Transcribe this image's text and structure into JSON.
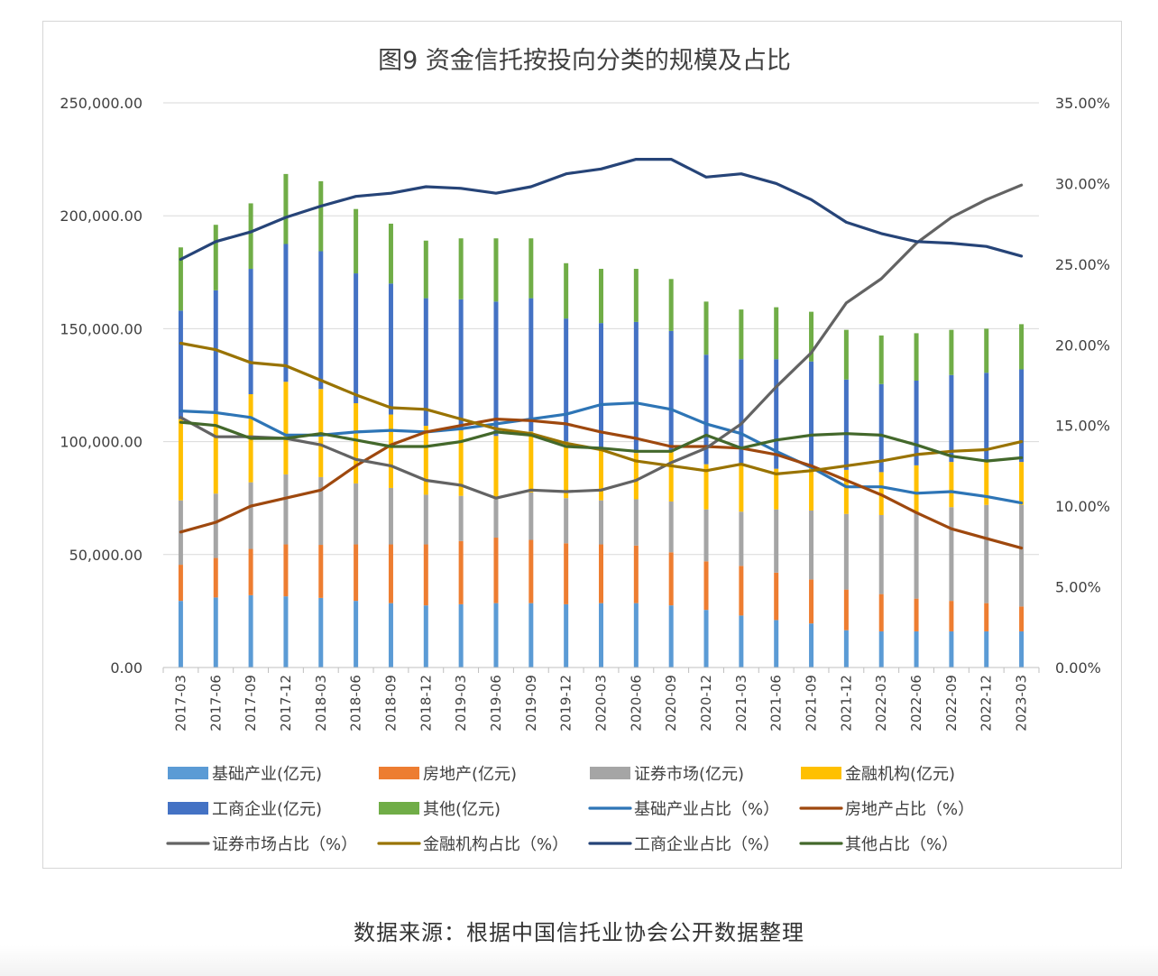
{
  "chart_data": {
    "type": "bar",
    "title": "图9  资金信托按投向分类的规模及占比",
    "categories": [
      "2017-03",
      "2017-06",
      "2017-09",
      "2017-12",
      "2018-03",
      "2018-06",
      "2018-09",
      "2018-12",
      "2019-03",
      "2019-06",
      "2019-09",
      "2019-12",
      "2020-03",
      "2020-06",
      "2020-09",
      "2020-12",
      "2021-03",
      "2021-06",
      "2021-09",
      "2021-12",
      "2022-03",
      "2022-06",
      "2022-09",
      "2022-12",
      "2023-03"
    ],
    "left_axis": {
      "min": 0,
      "max": 250000,
      "ticks": [
        "0.00",
        "50,000.00",
        "100,000.00",
        "150,000.00",
        "200,000.00",
        "250,000.00"
      ]
    },
    "right_axis": {
      "min": 0,
      "max": 35,
      "ticks": [
        "0.00%",
        "5.00%",
        "10.00%",
        "15.00%",
        "20.00%",
        "25.00%",
        "30.00%",
        "35.00%"
      ]
    },
    "grid": true,
    "legend_position": "bottom",
    "bar_series": [
      {
        "name": "基础产业(亿元)",
        "color": "#5b9bd5",
        "values": [
          29500,
          31000,
          32000,
          31500,
          30800,
          29500,
          28500,
          27500,
          28000,
          28500,
          28500,
          28000,
          28500,
          28500,
          27500,
          25500,
          23000,
          21000,
          19500,
          16500,
          16000,
          16000,
          16000,
          16000,
          16000
        ]
      },
      {
        "name": "房地产(亿元)",
        "color": "#ed7d31",
        "values": [
          16000,
          17500,
          20500,
          23000,
          23500,
          25000,
          26000,
          27000,
          28000,
          29000,
          28000,
          27000,
          26000,
          25500,
          23500,
          21500,
          22000,
          21000,
          19500,
          18000,
          16500,
          14500,
          13500,
          12500,
          11000
        ]
      },
      {
        "name": "证券市场(亿元)",
        "color": "#a5a5a5",
        "values": [
          28500,
          28500,
          29500,
          31000,
          30000,
          27000,
          25000,
          22000,
          20000,
          17000,
          21000,
          20000,
          19500,
          20500,
          22500,
          23000,
          24000,
          28000,
          30500,
          33500,
          35000,
          38000,
          41500,
          43500,
          45000
        ]
      },
      {
        "name": "金融机构(亿元)",
        "color": "#ffc000",
        "values": [
          36000,
          36500,
          39000,
          41000,
          39000,
          35500,
          32500,
          30500,
          29000,
          28000,
          27000,
          25000,
          23000,
          20500,
          22000,
          20000,
          21500,
          18000,
          19000,
          19500,
          19000,
          21000,
          20000,
          20000,
          19000
        ]
      },
      {
        "name": "工商企业(亿元)",
        "color": "#4472c4",
        "values": [
          48000,
          53500,
          55500,
          61000,
          61000,
          57500,
          58000,
          56500,
          58000,
          59500,
          59000,
          54500,
          55500,
          58000,
          53500,
          48500,
          46000,
          48500,
          47000,
          40000,
          39000,
          37500,
          38500,
          38500,
          41000
        ]
      },
      {
        "name": "其他(亿元)",
        "color": "#70ad47",
        "values": [
          28000,
          29000,
          29000,
          31000,
          31000,
          28500,
          26500,
          25500,
          27000,
          28000,
          26500,
          24500,
          24000,
          23500,
          23000,
          23500,
          22000,
          23000,
          22000,
          22000,
          21500,
          21000,
          20000,
          19500,
          20000
        ]
      }
    ],
    "line_series": [
      {
        "name": "基础产业占比（%）",
        "color": "#2e75b6",
        "values": [
          15.9,
          15.8,
          15.5,
          14.4,
          14.4,
          14.6,
          14.7,
          14.6,
          14.8,
          15.1,
          15.4,
          15.7,
          16.3,
          16.4,
          16.0,
          15.1,
          14.5,
          13.4,
          12.4,
          11.2,
          11.2,
          10.8,
          10.9,
          10.6,
          10.2
        ]
      },
      {
        "name": "房地产占比（%）",
        "color": "#9e480e",
        "values": [
          8.4,
          9.0,
          10.0,
          10.5,
          11.0,
          12.5,
          13.8,
          14.6,
          15.0,
          15.4,
          15.3,
          15.1,
          14.6,
          14.2,
          13.7,
          13.7,
          13.6,
          13.2,
          12.5,
          11.6,
          10.7,
          9.6,
          8.6,
          8.0,
          7.4
        ]
      },
      {
        "name": "证券市场占比（%）",
        "color": "#636363",
        "values": [
          15.5,
          14.3,
          14.3,
          14.2,
          13.8,
          12.9,
          12.5,
          11.6,
          11.3,
          10.5,
          11.0,
          10.9,
          11.0,
          11.6,
          12.7,
          13.6,
          15.1,
          17.4,
          19.5,
          22.6,
          24.1,
          26.3,
          27.9,
          29.0,
          29.9
        ]
      },
      {
        "name": "金融机构占比（%）",
        "color": "#997300",
        "values": [
          20.1,
          19.7,
          18.9,
          18.7,
          17.8,
          16.9,
          16.1,
          16.0,
          15.4,
          14.8,
          14.5,
          13.9,
          13.5,
          12.8,
          12.5,
          12.2,
          12.6,
          12.0,
          12.2,
          12.5,
          12.8,
          13.2,
          13.4,
          13.5,
          14.0
        ]
      },
      {
        "name": "工商企业占比（%）",
        "color": "#264478",
        "values": [
          25.3,
          26.4,
          27.0,
          27.9,
          28.6,
          29.2,
          29.4,
          29.8,
          29.7,
          29.4,
          29.8,
          30.6,
          30.9,
          31.5,
          31.5,
          30.4,
          30.6,
          30.0,
          29.0,
          27.6,
          26.9,
          26.4,
          26.3,
          26.1,
          25.5
        ]
      },
      {
        "name": "其他占比（%）",
        "color": "#43682b",
        "values": [
          15.2,
          15.0,
          14.2,
          14.2,
          14.5,
          14.1,
          13.7,
          13.7,
          14.0,
          14.6,
          14.4,
          13.7,
          13.6,
          13.4,
          13.4,
          14.4,
          13.6,
          14.1,
          14.4,
          14.5,
          14.4,
          13.8,
          13.1,
          12.8,
          13.0
        ]
      }
    ]
  },
  "footer": {
    "source": "数据来源：根据中国信托业协会公开数据整理"
  }
}
